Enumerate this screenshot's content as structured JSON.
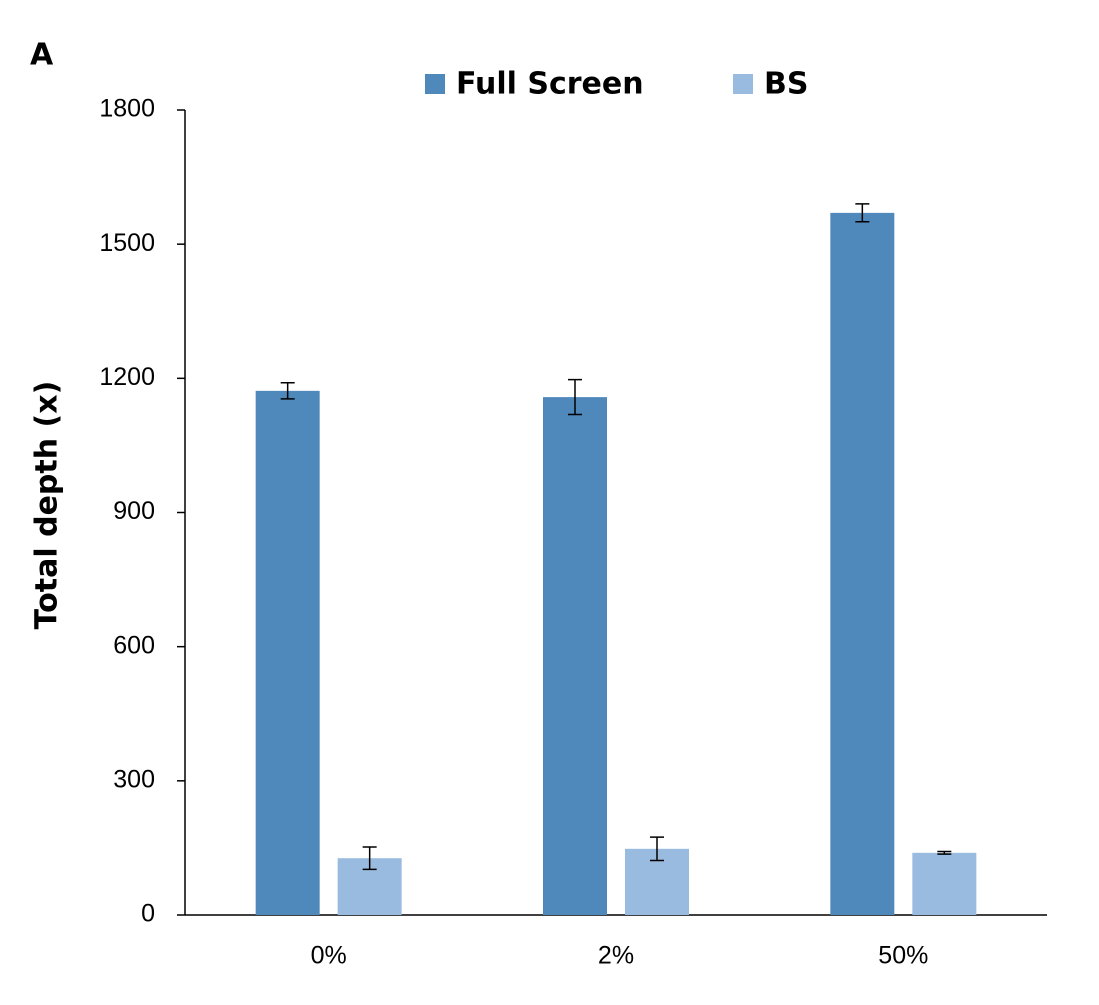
{
  "chart_data": {
    "type": "bar",
    "panel_label": "A",
    "y_label": "Total depth (x)",
    "categories": [
      "0%",
      "2%",
      "50%"
    ],
    "series": [
      {
        "name": "Full Screen",
        "color": "#4f89bb",
        "values": [
          1172,
          1158,
          1570
        ],
        "errors": [
          18,
          39,
          20
        ]
      },
      {
        "name": "BS",
        "color": "#9abbe0",
        "values": [
          127,
          148,
          139
        ],
        "errors": [
          25,
          26,
          3
        ]
      }
    ],
    "ylim": [
      0,
      1800
    ],
    "yticks": [
      0,
      300,
      600,
      900,
      1200,
      1500,
      1800
    ],
    "grid": false,
    "legend": "top"
  }
}
